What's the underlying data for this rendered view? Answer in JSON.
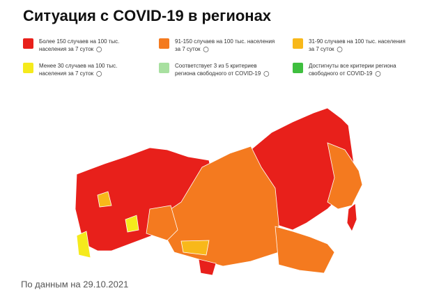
{
  "header": {
    "title": "Ситуация с COVID-19 в регионах"
  },
  "legend": [
    {
      "line1": "Более 150 случаев на 100 тыс.",
      "line2": "населения за 7 суток",
      "color": "#e8201b"
    },
    {
      "line1": "91-150 случаев на 100 тыс. населения",
      "line2": "за 7 суток",
      "color": "#f47a1f"
    },
    {
      "line1": "31-90 случаев на 100 тыс. населения",
      "line2": "за 7 суток",
      "color": "#f8b81a"
    },
    {
      "line1": "Менее 30 случаев на 100 тыс.",
      "line2": "населения за 7 суток",
      "color": "#f5ea1c"
    },
    {
      "line1": "Соответствует 3 из 5 критериев",
      "line2": "региона свободного от COVID-19",
      "color": "#a8e0a0"
    },
    {
      "line1": "Достигнуты все критерии региона",
      "line2": "свободного от COVID-19",
      "color": "#3fbf3f"
    }
  ],
  "footer": {
    "note": "По данным на 29.10.2021"
  }
}
